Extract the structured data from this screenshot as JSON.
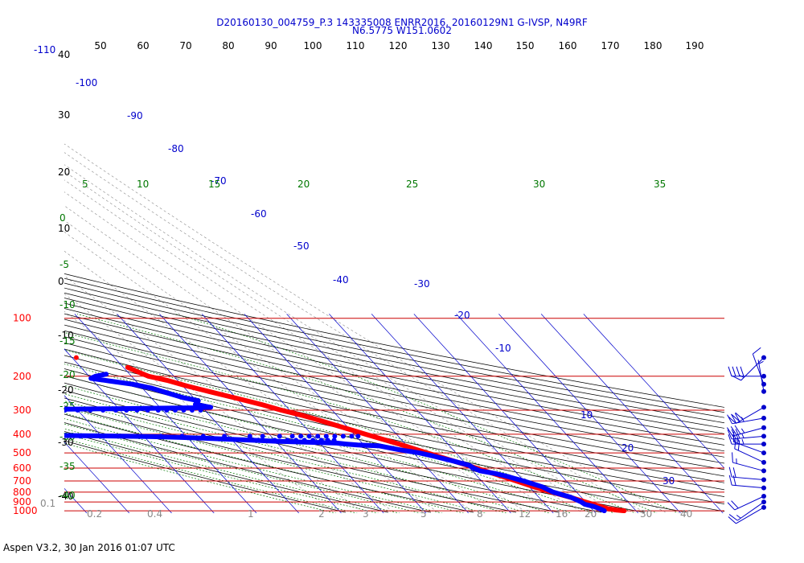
{
  "header": {
    "line1": "D20160130_004759_P.3 143335008 ENRR2016, 20160129N1 G-IVSP, N49RF",
    "line2": "N6.5775 W151.0602"
  },
  "footer": "Aspen V3.2, 30 Jan 2016  01:07 UTC",
  "colors": {
    "isobar": "#cc0000",
    "isotherm": "#0000cc",
    "dry_adiabat": "#000000",
    "moist_adiabat": "#007700",
    "mixing_ratio": "#888888",
    "temperature": "#ff0000",
    "dewpoint": "#0000ff",
    "wind": "#0000cc"
  },
  "chart_data": {
    "type": "skew-t",
    "y_axis": {
      "pressure_labels": [
        "100",
        "200",
        "300",
        "400",
        "500",
        "600",
        "700",
        "800",
        "900",
        "1000"
      ],
      "pressure_values_hpa": [
        100,
        200,
        300,
        400,
        500,
        600,
        700,
        800,
        900,
        1000
      ],
      "extra_labels": [
        "-110",
        "0.1"
      ],
      "height_labels": [
        "40",
        "30",
        "20",
        "10",
        "0",
        "-10",
        "-20",
        "-30",
        "-40"
      ]
    },
    "top_axis_labels": [
      "50",
      "60",
      "70",
      "80",
      "90",
      "100",
      "110",
      "120",
      "130",
      "140",
      "150",
      "160",
      "170",
      "180",
      "190"
    ],
    "isotherm_labels": [
      "-100",
      "-90",
      "-80",
      "-70",
      "-60",
      "-50",
      "-40",
      "-30",
      "-20",
      "-10",
      "10",
      "20",
      "30"
    ],
    "isotherm_values": [
      -100,
      -90,
      -80,
      -70,
      -60,
      -50,
      -40,
      -30,
      -20,
      -10,
      10,
      20,
      30
    ],
    "moist_adiabat_labels_top": [
      "5",
      "10",
      "15",
      "20",
      "25",
      "30",
      "35"
    ],
    "moist_adiabat_labels_left": [
      "0",
      "-5",
      "-10",
      "-15",
      "-20",
      "-25",
      "-30",
      "-35",
      "-40"
    ],
    "mixing_ratio_labels": [
      "0.2",
      "0.4",
      "1",
      "2",
      "3",
      "5",
      "8",
      "12",
      "16",
      "20",
      "30",
      "40"
    ],
    "temperature_profile": [
      {
        "p": 1000,
        "t": 27.2
      },
      {
        "p": 990,
        "t": 25.5
      },
      {
        "p": 975,
        "t": 23.8
      },
      {
        "p": 950,
        "t": 22.6
      },
      {
        "p": 925,
        "t": 21.3
      },
      {
        "p": 900,
        "t": 20.0
      },
      {
        "p": 850,
        "t": 17.4
      },
      {
        "p": 800,
        "t": 14.1
      },
      {
        "p": 750,
        "t": 11.0
      },
      {
        "p": 700,
        "t": 8.2
      },
      {
        "p": 650,
        "t": 5.0
      },
      {
        "p": 600,
        "t": 1.5
      },
      {
        "p": 550,
        "t": -2.4
      },
      {
        "p": 500,
        "t": -6.8
      },
      {
        "p": 450,
        "t": -11.5
      },
      {
        "p": 400,
        "t": -17.3
      },
      {
        "p": 370,
        "t": -21.0
      },
      {
        "p": 340,
        "t": -25.0
      },
      {
        "p": 320,
        "t": -28.0
      },
      {
        "p": 300,
        "t": -32.0
      },
      {
        "p": 280,
        "t": -35.5
      },
      {
        "p": 260,
        "t": -40.0
      },
      {
        "p": 240,
        "t": -45.0
      },
      {
        "p": 225,
        "t": -49.0
      },
      {
        "p": 210,
        "t": -52.5
      },
      {
        "p": 200,
        "t": -56.0
      },
      {
        "p": 190,
        "t": -57.5
      },
      {
        "p": 180,
        "t": -59.0
      }
    ],
    "temperature_isolated": [
      {
        "p": 160,
        "t": -69.0
      }
    ],
    "dewpoint_profile": [
      {
        "p": 1000,
        "t": 22.5
      },
      {
        "p": 990,
        "t": 22.3
      },
      {
        "p": 975,
        "t": 21.9
      },
      {
        "p": 950,
        "t": 21.0
      },
      {
        "p": 925,
        "t": 19.3
      },
      {
        "p": 900,
        "t": 19.0
      },
      {
        "p": 850,
        "t": 17.5
      },
      {
        "p": 800,
        "t": 14.5
      },
      {
        "p": 750,
        "t": 13.0
      },
      {
        "p": 700,
        "t": 9.9
      },
      {
        "p": 660,
        "t": 6.8
      },
      {
        "p": 640,
        "t": 4.8
      },
      {
        "p": 620,
        "t": 1.8
      },
      {
        "p": 600,
        "t": 0.9
      },
      {
        "p": 580,
        "t": 0.4
      },
      {
        "p": 550,
        "t": -2.5
      },
      {
        "p": 520,
        "t": -6.0
      },
      {
        "p": 500,
        "t": -8.7
      },
      {
        "p": 480,
        "t": -13.0
      },
      {
        "p": 460,
        "t": -16.5
      },
      {
        "p": 455,
        "t": -21.5
      },
      {
        "p": 450,
        "t": -24.0
      },
      {
        "p": 445,
        "t": -26.0
      },
      {
        "p": 440,
        "t": -33.0
      },
      {
        "p": 435,
        "t": -40.0
      },
      {
        "p": 430,
        "t": -45.0
      },
      {
        "p": 425,
        "t": -50.0
      },
      {
        "p": 420,
        "t": -56.0
      },
      {
        "p": 415,
        "t": -62.0
      },
      {
        "p": 412,
        "t": -68.0
      },
      {
        "p": 410,
        "t": -74.0
      },
      {
        "p": 408,
        "t": -82.0
      },
      {
        "p": 406,
        "t": -90.0
      },
      {
        "p": 400,
        "t": -96.0
      },
      {
        "p": 380,
        "t": -99.5
      },
      {
        "p": 350,
        "t": -101.5
      },
      {
        "p": 320,
        "t": -103.5
      },
      {
        "p": 300,
        "t": -105.0
      },
      {
        "p": 298,
        "t": -97.0
      },
      {
        "p": 297,
        "t": -90.0
      },
      {
        "p": 296,
        "t": -80.0
      },
      {
        "p": 295,
        "t": -72.0
      },
      {
        "p": 294,
        "t": -66.0
      },
      {
        "p": 293,
        "t": -60.0
      },
      {
        "p": 292,
        "t": -53.0
      },
      {
        "p": 290,
        "t": -48.0
      },
      {
        "p": 280,
        "t": -51.0
      },
      {
        "p": 268,
        "t": -49.5
      },
      {
        "p": 258,
        "t": -52.5
      },
      {
        "p": 245,
        "t": -55.0
      },
      {
        "p": 230,
        "t": -58.0
      },
      {
        "p": 220,
        "t": -61.5
      },
      {
        "p": 212,
        "t": -66.0
      },
      {
        "p": 205,
        "t": -70.0
      },
      {
        "p": 200,
        "t": -68.5
      },
      {
        "p": 195,
        "t": -65.5
      }
    ],
    "dewpoint_scatter": [
      {
        "p": 300,
        "t": -108.0
      },
      {
        "p": 300,
        "t": -106.0
      },
      {
        "p": 300,
        "t": -104.0
      },
      {
        "p": 300,
        "t": -101.0
      },
      {
        "p": 300,
        "t": -98.0
      },
      {
        "p": 300,
        "t": -95.0
      },
      {
        "p": 300,
        "t": -92.0
      },
      {
        "p": 300,
        "t": -89.0
      },
      {
        "p": 300,
        "t": -86.0
      },
      {
        "p": 300,
        "t": -83.0
      },
      {
        "p": 300,
        "t": -80.0
      },
      {
        "p": 300,
        "t": -77.0
      },
      {
        "p": 300,
        "t": -74.0
      },
      {
        "p": 300,
        "t": -71.0
      },
      {
        "p": 300,
        "t": -68.5
      },
      {
        "p": 300,
        "t": -66.0
      },
      {
        "p": 300,
        "t": -63.5
      },
      {
        "p": 300,
        "t": -61.0
      },
      {
        "p": 300,
        "t": -59.0
      },
      {
        "p": 300,
        "t": -57.0
      },
      {
        "p": 300,
        "t": -55.0
      },
      {
        "p": 300,
        "t": -53.0
      },
      {
        "p": 300,
        "t": -51.0
      },
      {
        "p": 410,
        "t": -112.0
      },
      {
        "p": 410,
        "t": -108.0
      },
      {
        "p": 410,
        "t": -105.0
      },
      {
        "p": 410,
        "t": -102.5
      },
      {
        "p": 410,
        "t": -100.5
      },
      {
        "p": 410,
        "t": -98.0
      },
      {
        "p": 410,
        "t": -92.0
      },
      {
        "p": 410,
        "t": -85.0
      },
      {
        "p": 410,
        "t": -80.0
      },
      {
        "p": 410,
        "t": -73.0
      },
      {
        "p": 410,
        "t": -66.0
      },
      {
        "p": 410,
        "t": -61.0
      },
      {
        "p": 410,
        "t": -56.0
      },
      {
        "p": 410,
        "t": -51.0
      },
      {
        "p": 410,
        "t": -45.0
      },
      {
        "p": 410,
        "t": -42.0
      },
      {
        "p": 410,
        "t": -38.0
      },
      {
        "p": 410,
        "t": -35.0
      },
      {
        "p": 410,
        "t": -33.0
      },
      {
        "p": 410,
        "t": -31.0
      },
      {
        "p": 410,
        "t": -29.0
      },
      {
        "p": 410,
        "t": -27.0
      },
      {
        "p": 410,
        "t": -25.0
      },
      {
        "p": 410,
        "t": -23.0
      },
      {
        "p": 410,
        "t": -21.0
      },
      {
        "p": 410,
        "t": -19.5
      },
      {
        "p": 430,
        "t": -44.0
      },
      {
        "p": 430,
        "t": -40.0
      },
      {
        "p": 430,
        "t": -37.0
      },
      {
        "p": 430,
        "t": -35.0
      },
      {
        "p": 430,
        "t": -33.0
      },
      {
        "p": 430,
        "t": -31.0
      },
      {
        "p": 430,
        "t": -29.0
      },
      {
        "p": 430,
        "t": -27.5
      },
      {
        "p": 430,
        "t": -26.0
      }
    ],
    "wind_barbs": [
      {
        "p": 160,
        "dir": 225,
        "kt": 15
      },
      {
        "p": 200,
        "dir": 270,
        "kt": 40
      },
      {
        "p": 220,
        "dir": 340,
        "kt": 10
      },
      {
        "p": 240,
        "dir": 350,
        "kt": 5
      },
      {
        "p": 290,
        "dir": 240,
        "kt": 30
      },
      {
        "p": 330,
        "dir": 260,
        "kt": 35
      },
      {
        "p": 370,
        "dir": 255,
        "kt": 35
      },
      {
        "p": 410,
        "dir": 265,
        "kt": 35
      },
      {
        "p": 450,
        "dir": 270,
        "kt": 35
      },
      {
        "p": 500,
        "dir": 290,
        "kt": 15
      },
      {
        "p": 560,
        "dir": 295,
        "kt": 20
      },
      {
        "p": 620,
        "dir": 285,
        "kt": 15
      },
      {
        "p": 690,
        "dir": 275,
        "kt": 20
      },
      {
        "p": 760,
        "dir": 275,
        "kt": 20
      },
      {
        "p": 840,
        "dir": 245,
        "kt": 20
      },
      {
        "p": 900,
        "dir": 235,
        "kt": 15
      },
      {
        "p": 960,
        "dir": 240,
        "kt": 10
      }
    ]
  }
}
